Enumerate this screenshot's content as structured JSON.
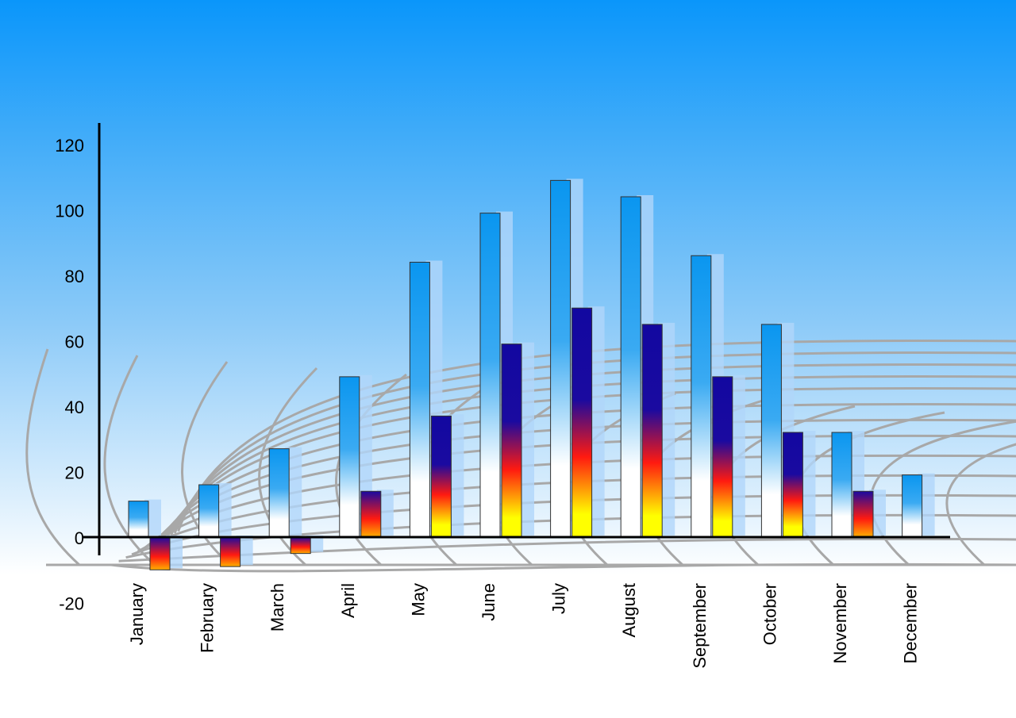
{
  "chart_data": {
    "type": "bar",
    "title": "",
    "xlabel": "",
    "ylabel": "",
    "categories": [
      "January",
      "February",
      "March",
      "April",
      "May",
      "June",
      "July",
      "August",
      "September",
      "October",
      "November",
      "December"
    ],
    "series": [
      {
        "values": [
          11,
          16,
          27,
          49,
          84,
          99,
          109,
          104,
          86,
          65,
          32,
          19
        ],
        "color": "#0a96f0"
      },
      {
        "values": [
          -10,
          -9,
          -5,
          14,
          37,
          59,
          70,
          65,
          49,
          32,
          14,
          null
        ],
        "color": "#1a0aa0"
      }
    ],
    "ylim": [
      -20,
      120
    ],
    "yticks": [
      -20,
      0,
      20,
      40,
      60,
      80,
      100,
      120
    ],
    "grid": false,
    "legend": "none",
    "colors": {
      "background_top": "#0a96fa",
      "background_bottom": "#ffffff",
      "floor_grid": "#a8a8a8"
    }
  }
}
